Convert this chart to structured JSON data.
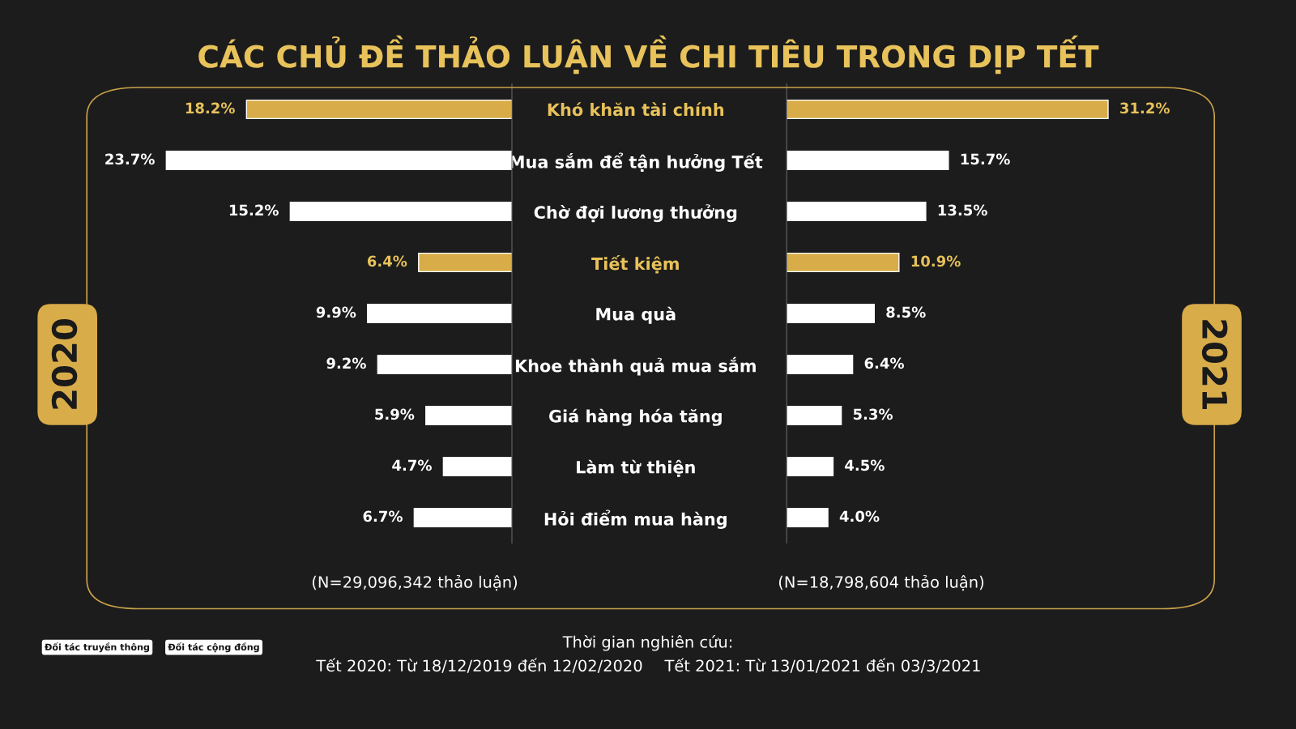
{
  "chart_data": [
    {
      "type": "bar",
      "orientation": "horizontal",
      "title": "CÁC CHỦ ĐỀ THẢO LUẬN VỀ CHI TIÊU TRONG DỊP TẾT",
      "ylabel": "2020",
      "categories": [
        "Khó khăn tài chính",
        "Mua sắm để tận hưởng Tết",
        "Chờ đợi lương thưởng",
        "Tiết kiệm",
        "Mua quà",
        "Khoe thành quả mua sắm",
        "Giá hàng hóa tăng",
        "Làm từ thiện",
        "Hỏi điểm mua hàng"
      ],
      "values": [
        18.2,
        23.7,
        15.2,
        6.4,
        9.9,
        9.2,
        5.9,
        4.7,
        6.7
      ],
      "colors": [
        "#d9ac4a",
        "#ffffff",
        "#ffffff",
        "#d9ac4a",
        "#ffffff",
        "#ffffff",
        "#ffffff",
        "#ffffff",
        "#ffffff"
      ],
      "value_labels": [
        "18.2%",
        "23.7%",
        "15.2%",
        "6.4%",
        "9.9%",
        "9.2%",
        "5.9%",
        "4.7%",
        "6.7%"
      ],
      "tick_labels": "y",
      "grid": false,
      "legend": false,
      "annotations": [
        "(N=29,096,342 thảo luận)",
        "Thời gian nghiên cứu:",
        "Tết 2020: Từ 18/12/2019 đến 12/02/2020",
        "Tết 2021: Từ 13/01/2021 đến 03/3/2021",
        "Đối tác truyền thông",
        "Đối tác cộng đồng"
      ]
    },
    {
      "type": "bar",
      "orientation": "horizontal",
      "ylabel": "2021",
      "categories": [
        null,
        null,
        null,
        null,
        null,
        null,
        null,
        null,
        null
      ],
      "values": [
        31.2,
        15.7,
        13.5,
        10.9,
        8.5,
        6.4,
        5.3,
        4.5,
        4.0
      ],
      "colors": [
        "#d9ac4a",
        "#ffffff",
        "#ffffff",
        "#d9ac4a",
        "#ffffff",
        "#ffffff",
        "#ffffff",
        "#ffffff",
        "#ffffff"
      ],
      "value_labels": [
        "31.2%",
        "15.7%",
        "13.5%",
        "10.9%",
        "8.5%",
        "6.4%",
        "5.3%",
        "4.5%",
        "4.0%"
      ],
      "tick_labels": false,
      "grid": false,
      "legend": false,
      "annotations": [
        "(N=18,798,604 thảo luận)"
      ]
    }
  ]
}
